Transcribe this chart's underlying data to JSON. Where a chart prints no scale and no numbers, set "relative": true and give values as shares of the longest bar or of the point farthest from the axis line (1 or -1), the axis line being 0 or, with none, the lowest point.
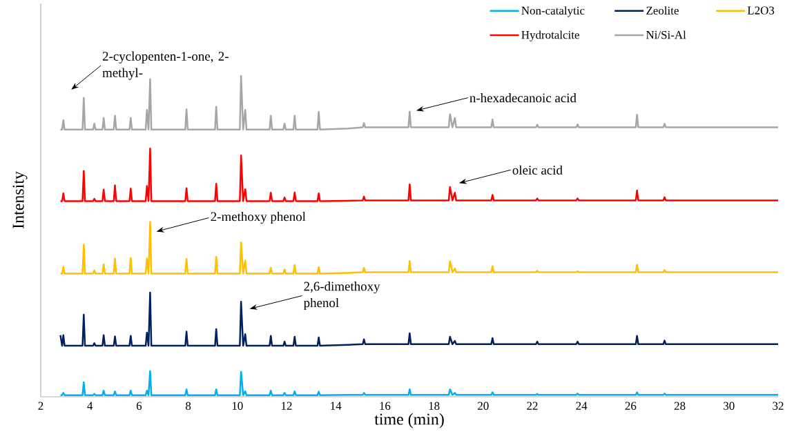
{
  "chart_data": {
    "type": "line",
    "relative": true,
    "xlabel": "time (min)",
    "ylabel": "Intensity",
    "xlim": [
      2,
      32
    ],
    "xticks": [
      2,
      4,
      6,
      8,
      10,
      12,
      14,
      16,
      18,
      20,
      22,
      24,
      26,
      28,
      30,
      32
    ],
    "legend": "top right",
    "x": [
      2.8,
      2.87,
      2.92,
      2.97,
      3.7,
      3.75,
      3.8,
      4.13,
      4.18,
      4.23,
      4.51,
      4.56,
      4.61,
      4.97,
      5.02,
      5.07,
      5.61,
      5.66,
      5.71,
      6.27,
      6.32,
      6.385,
      6.45,
      6.5,
      7.88,
      7.93,
      7.98,
      9.09,
      9.14,
      9.19,
      10.1,
      10.15,
      10.235,
      10.32,
      10.37,
      11.31,
      11.36,
      11.41,
      11.87,
      11.92,
      11.97,
      12.28,
      12.33,
      12.38,
      13.26,
      13.31,
      13.36,
      14.5,
      15.1,
      15.15,
      15.2,
      16.96,
      17.01,
      17.06,
      18.6,
      18.65,
      18.75,
      18.85,
      18.9,
      20.33,
      20.38,
      20.43,
      22.15,
      22.2,
      22.25,
      23.79,
      23.84,
      23.89,
      26.21,
      26.26,
      26.31,
      27.33,
      27.38,
      27.43,
      32
    ],
    "series": [
      {
        "name": "Non-catalytic",
        "color": "#00b0f0",
        "values": [
          0.005,
          0.005,
          0.012,
          0.005,
          0.005,
          0.045,
          0.005,
          0.005,
          0.009,
          0.005,
          0.005,
          0.019,
          0.005,
          0.005,
          0.017,
          0.005,
          0.005,
          0.019,
          0.005,
          0.005,
          0.019,
          0.005,
          0.08,
          0.005,
          0.005,
          0.023,
          0.005,
          0.005,
          0.023,
          0.005,
          0.005,
          0.078,
          0.005,
          0.017,
          0.005,
          0.005,
          0.019,
          0.005,
          0.005,
          0.012,
          0.005,
          0.005,
          0.017,
          0.005,
          0.005,
          0.016,
          0.005,
          0.006,
          0.006,
          0.012,
          0.006,
          0.006,
          0.023,
          0.006,
          0.006,
          0.023,
          0.006,
          0.012,
          0.006,
          0.006,
          0.014,
          0.006,
          0.006,
          0.009,
          0.006,
          0.006,
          0.01,
          0.006,
          0.006,
          0.014,
          0.006,
          0.006,
          0.01,
          0.006,
          0.006
        ]
      },
      {
        "name": "Zeolite",
        "color": "#002060",
        "values": [
          0.192,
          0.159,
          0.192,
          0.159,
          0.159,
          0.256,
          0.159,
          0.159,
          0.167,
          0.159,
          0.159,
          0.192,
          0.159,
          0.159,
          0.188,
          0.159,
          0.159,
          0.19,
          0.159,
          0.159,
          0.2,
          0.159,
          0.325,
          0.159,
          0.159,
          0.203,
          0.159,
          0.159,
          0.211,
          0.159,
          0.159,
          0.296,
          0.159,
          0.195,
          0.159,
          0.159,
          0.19,
          0.159,
          0.159,
          0.172,
          0.159,
          0.159,
          0.187,
          0.159,
          0.159,
          0.185,
          0.159,
          0.162,
          0.164,
          0.179,
          0.164,
          0.164,
          0.198,
          0.164,
          0.164,
          0.187,
          0.164,
          0.174,
          0.164,
          0.164,
          0.183,
          0.164,
          0.164,
          0.172,
          0.164,
          0.164,
          0.172,
          0.164,
          0.164,
          0.19,
          0.164,
          0.164,
          0.175,
          0.164,
          0.164
        ]
      },
      {
        "name": "L2O3",
        "color": "#ffc000",
        "values": [
          0.384,
          0.384,
          0.405,
          0.384,
          0.384,
          0.474,
          0.384,
          0.384,
          0.394,
          0.384,
          0.384,
          0.413,
          0.384,
          0.384,
          0.431,
          0.384,
          0.384,
          0.433,
          0.384,
          0.384,
          0.431,
          0.384,
          0.545,
          0.384,
          0.384,
          0.43,
          0.384,
          0.384,
          0.436,
          0.384,
          0.384,
          0.481,
          0.384,
          0.425,
          0.384,
          0.384,
          0.402,
          0.384,
          0.384,
          0.397,
          0.384,
          0.384,
          0.411,
          0.384,
          0.384,
          0.404,
          0.384,
          0.386,
          0.388,
          0.402,
          0.388,
          0.388,
          0.423,
          0.388,
          0.388,
          0.422,
          0.388,
          0.4,
          0.388,
          0.388,
          0.407,
          0.388,
          0.388,
          0.393,
          0.388,
          0.388,
          0.391,
          0.388,
          0.388,
          0.412,
          0.388,
          0.388,
          0.395,
          0.388,
          0.388
        ]
      },
      {
        "name": "Hydrotalcite",
        "color": "#ff0000",
        "values": [
          0.61,
          0.61,
          0.634,
          0.61,
          0.61,
          0.704,
          0.61,
          0.61,
          0.617,
          0.61,
          0.61,
          0.646,
          0.61,
          0.61,
          0.659,
          0.61,
          0.61,
          0.649,
          0.61,
          0.61,
          0.657,
          0.61,
          0.774,
          0.61,
          0.61,
          0.65,
          0.61,
          0.61,
          0.664,
          0.61,
          0.61,
          0.752,
          0.61,
          0.647,
          0.61,
          0.61,
          0.636,
          0.61,
          0.61,
          0.621,
          0.61,
          0.61,
          0.637,
          0.61,
          0.61,
          0.634,
          0.61,
          0.611,
          0.612,
          0.624,
          0.612,
          0.612,
          0.662,
          0.612,
          0.612,
          0.654,
          0.612,
          0.636,
          0.612,
          0.612,
          0.629,
          0.612,
          0.612,
          0.618,
          0.612,
          0.612,
          0.618,
          0.612,
          0.612,
          0.643,
          0.612,
          0.612,
          0.622,
          0.612,
          0.612
        ]
      },
      {
        "name": "Ni/Si-Al",
        "color": "#a6a6a6",
        "values": [
          0.833,
          0.833,
          0.862,
          0.833,
          0.833,
          0.932,
          0.833,
          0.833,
          0.851,
          0.833,
          0.833,
          0.869,
          0.833,
          0.833,
          0.876,
          0.833,
          0.833,
          0.869,
          0.833,
          0.833,
          0.894,
          0.833,
          0.99,
          0.833,
          0.833,
          0.896,
          0.833,
          0.833,
          0.904,
          0.833,
          0.833,
          1.0,
          0.833,
          0.894,
          0.833,
          0.833,
          0.876,
          0.833,
          0.833,
          0.851,
          0.833,
          0.833,
          0.876,
          0.833,
          0.833,
          0.888,
          0.833,
          0.836,
          0.84,
          0.853,
          0.84,
          0.84,
          0.889,
          0.84,
          0.84,
          0.881,
          0.84,
          0.869,
          0.84,
          0.84,
          0.864,
          0.84,
          0.84,
          0.848,
          0.84,
          0.84,
          0.849,
          0.84,
          0.84,
          0.879,
          0.84,
          0.84,
          0.851,
          0.84,
          0.84
        ]
      }
    ],
    "annotations": [
      "2-cyclopenten-1-one, 2-methyl-",
      "n-hexadecanoic acid",
      "oleic acid",
      "2-methoxy phenol",
      "2,6-dimethoxy phenol"
    ]
  }
}
